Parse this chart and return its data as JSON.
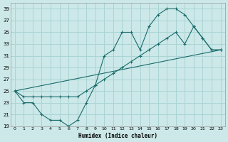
{
  "title": "",
  "xlabel": "Humidex (Indice chaleur)",
  "ylabel": "",
  "bg_color": "#cce8e8",
  "grid_color": "#aad4d4",
  "line_color": "#1a6b6b",
  "series1_x": [
    0,
    1,
    2,
    3,
    4,
    5,
    6,
    7,
    8,
    9,
    10,
    11,
    12,
    13,
    14,
    15,
    16,
    17,
    18,
    19,
    20,
    21,
    22,
    23
  ],
  "series1_y": [
    25,
    23,
    23,
    21,
    20,
    20,
    19,
    20,
    23,
    26,
    31,
    32,
    35,
    35,
    32,
    36,
    38,
    39,
    39,
    38,
    36,
    34,
    32,
    32
  ],
  "series2_x": [
    0,
    1,
    2,
    3,
    4,
    5,
    6,
    7,
    8,
    9,
    10,
    11,
    12,
    13,
    14,
    15,
    16,
    17,
    18,
    19,
    20,
    21,
    22,
    23
  ],
  "series2_y": [
    25,
    24,
    24,
    24,
    24,
    24,
    24,
    24,
    25,
    26,
    27,
    28,
    29,
    30,
    31,
    32,
    33,
    34,
    35,
    33,
    36,
    34,
    32,
    32
  ],
  "series3_x": [
    0,
    23
  ],
  "series3_y": [
    25,
    32
  ],
  "ylim": [
    19,
    40
  ],
  "xlim": [
    -0.5,
    23.5
  ],
  "yticks": [
    19,
    21,
    23,
    25,
    27,
    29,
    31,
    33,
    35,
    37,
    39
  ],
  "xticks": [
    0,
    1,
    2,
    3,
    4,
    5,
    6,
    7,
    8,
    9,
    10,
    11,
    12,
    13,
    14,
    15,
    16,
    17,
    18,
    19,
    20,
    21,
    22,
    23
  ]
}
